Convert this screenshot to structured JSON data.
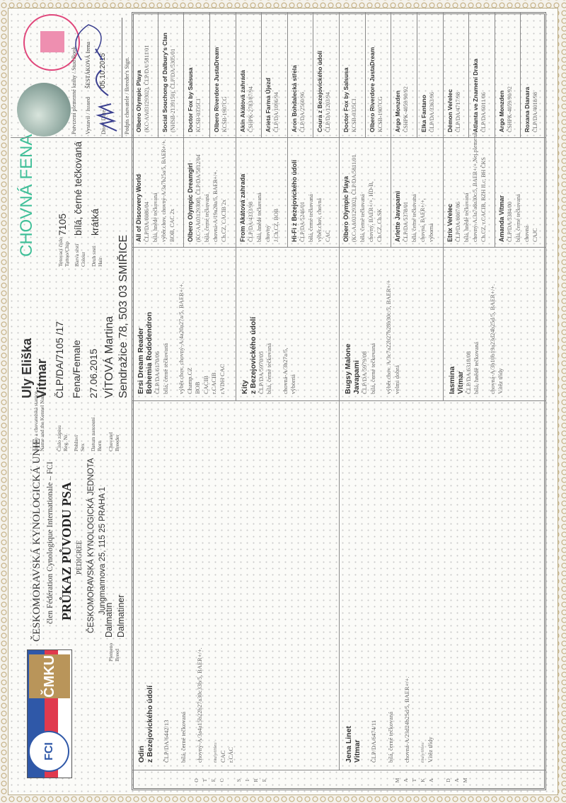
{
  "header": {
    "org_name": "ČESKOMORAVSKÁ KYNOLOGICKÁ UNIE",
    "fci_membership": "člen Fédération Cynologique Internationale – FCI",
    "doc_title": "PRŮKAZ PŮVODU PSA",
    "doc_subtitle": "PEDIGREE",
    "issuer": "ČESKOMORAVSKÁ KYNOLOGICKÁ JEDNOTA",
    "issuer_address": "Jungmannova 25, 115 25 PRAHA 1",
    "logo_text": [
      "FÉDÉRATION CYNOLOGIQUE INTERNATIONALE",
      "FCI",
      "ČMKU"
    ],
    "breed_label": [
      "Plemeno",
      "Breed"
    ],
    "breed_values": [
      "Dalmatin",
      "Dalmatiner"
    ],
    "field_labels": {
      "name": [
        "Jméno a chovatelská stanice",
        "Name and the Kennel Name"
      ],
      "reg": [
        "Číslo zápisu",
        "Reg. Nr."
      ],
      "sex": [
        "Pohlaví",
        "Sex"
      ],
      "born": [
        "Datum narození",
        "Born"
      ],
      "breeder": [
        "Chovatel",
        "Breeder"
      ],
      "tattoo": [
        "Tetovací číslo",
        "Tattoo/Chip"
      ],
      "colour": [
        "Barva srsti",
        "Colour"
      ],
      "hair": [
        "Druh srsti",
        "Hair"
      ]
    }
  },
  "dog": {
    "name": "Uly Eliška",
    "kennel": "Vitmar",
    "reg_nr": "ČLP/DA/7105 /17",
    "sex": "Fena/Female",
    "born": "27.06.2015",
    "breeder_name": "VÍTOVÁ Martina",
    "breeder_address": "Sendražice 78, 503 03 SMIŘICE",
    "tattoo": "7105",
    "colour": "bílá, černé tečkovaná",
    "hair": "krátká",
    "status": "CHOVNÁ FENA",
    "status_color": "#3fbf98"
  },
  "certification": {
    "stud_book_label": "Potvrzení plemenné knihy / Stud Book",
    "issued_label": "Vystavil / Issued",
    "issued_by": "ŠESTÁKOVÁ Irena",
    "date_label": "Dne / Date",
    "date": "05.10.2015",
    "breeder_sign_label": "Podpis chovatele / Breeder's Sign.",
    "stamp_text": "Plemenná kniha ČMKU 3",
    "stamp_color": "#e0457a"
  },
  "strip_labels": {
    "sire": [
      "O",
      "T",
      "E",
      "C",
      "S",
      "I",
      "R",
      "E"
    ],
    "dam": [
      "M",
      "A",
      "T",
      "K",
      "A",
      "D",
      "A",
      "M"
    ]
  },
  "pedigree": {
    "parents": [
      {
        "name_lines": [
          "Odin",
          "z Bezejovického údolí"
        ],
        "groups": [
          [
            "ČLP/DA/6442/13"
          ],
          [
            "bílá, černé tečkovaná"
          ],
          [
            "chovný-A/3a4a15b22b27a30c33b/5, BAER+/+."
          ]
        ],
        "titles_label": "tituly/titles/",
        "titles": [
          "CAC",
          "r.CAC"
        ]
      },
      {
        "name_lines": [
          "Jena Linet",
          "Vitmar"
        ],
        "groups": [
          [
            "ČLP/DA/6474/11"
          ],
          [
            "bílá, černé tečkovaná"
          ],
          [
            "chovná-A/23d24b25d/5, BAER+/+."
          ]
        ],
        "titles_label": "tituly/titles/",
        "titles": [
          "Vítěz třídy"
        ]
      }
    ],
    "grandparents": [
      {
        "name_lines": [
          "Ersi Dream Reader",
          "Bohemia Rododendron"
        ],
        "groups": [
          [
            "ČLP/DA/6170/06",
            "bílá, černé tečkovaná"
          ],
          [
            "výběr.chov, chovný-A/4a20a27a/5, BAER+/+.",
            "Champ.CZ",
            "BOB",
            "CACIB",
            "r.CACIB",
            "r.VDH CAC"
          ]
        ]
      },
      {
        "name_lines": [
          "Kity",
          "z Bezejovického údolí"
        ],
        "groups": [
          [
            "ČLP/DA/5970/05",
            "bílá, černé tečkovaná"
          ],
          [
            "chovná-A/3b27a/5,",
            "výborná"
          ]
        ]
      },
      {
        "name_lines": [
          "Bugsy Malone",
          "Javapami"
        ],
        "groups": [
          [
            "ČLP/DA/5979/08",
            "bílá, černé tečkovaná"
          ],
          [
            "výběr.chov. A/3c7a22b27b28b30c/5, BAER+/+",
            "velmi dobrá"
          ]
        ]
      },
      {
        "name_lines": [
          "Iasmina",
          "Vitmar"
        ],
        "groups": [
          [
            "ČLP/DA/6318/08",
            "bílá, hnědě tečkovaná"
          ],
          [
            "chovná-A/3b10b19a23d24b25d/5, BAER+/+.",
            "Vítěz třídy"
          ]
        ]
      }
    ],
    "great_grandparents": [
      {
        "name": "All of Discovery World",
        "lines": [
          "ČLP/DA/6086/04",
          "bílá, hnědé tečkovaná",
          "výběr.chov, chovný-A/3a7b25a/5, BAER+/+.",
          "BOB, CAC 2x"
        ]
      },
      {
        "name": "Olbero Olympic Dreamgirl",
        "lines": [
          "(KC-AA03129308), ČLP/DA/5812/04",
          "bílá, černé tečkovaná",
          "chovná-A/19a20a/5, BAER+/+.",
          "Ch.CZ, CACIB 2x"
        ]
      },
      {
        "name": "From Akátová zahrada",
        "lines": [
          "ČLP/DA/4333/98",
          "bílá, hnědé tečkovaná",
          "chovný",
          "J.Ch.CZ, BOB"
        ]
      },
      {
        "name": "Hi-Fi z Bezejovického údolí",
        "lines": [
          "ČLP/DA/5246/01",
          "bílá, černé tečkovaná",
          "výběr.chov, chovná",
          "CAC"
        ]
      },
      {
        "name": "Olbero Olympic Playa",
        "lines": [
          "(KC-AA03129302), ČLP/DA/5811/01",
          "bílá, černé tečkovaná",
          "chovný, BAER+/+, HD-B,",
          "Ch.CZ, Ch.SK"
        ]
      },
      {
        "name": "Arlette Javapami",
        "lines": [
          "ČLP/DA/5378/01",
          "bílá, černé tečkovaná",
          "chovná, BAER+/+,",
          "výborná"
        ]
      },
      {
        "name": "Etrix Veřelec",
        "lines": [
          "ČLP/DA/6067/06",
          "bílá, hnědé tečkovaná",
          "chovný-A/3a7a8a30c/5, BAER+/+,Nej.plemeník",
          "Ch.CZ, r.CACIB, BZH II.c, BH ČKS"
        ]
      },
      {
        "name": "Amanda Vitmar",
        "lines": [
          "ČLP/DA/5384/00",
          "bílá, černé tečkovaná",
          "chovná",
          "CAJC"
        ]
      }
    ],
    "great_great_grandparents": [
      {
        "name": "Olbero Olympic Playa",
        "reg": "(KC-AA03129302), ČLP/DA/5811/01"
      },
      {
        "name": "Social Souchong of Dalbury's Clan",
        "reg": "(NHSB-2139150), ČLP/DA/5305/01"
      },
      {
        "name": "Doctor Fox by Salsusa",
        "reg": "KCSB-0335CI"
      },
      {
        "name": "Olbero Riverdore JustaDream",
        "reg": "KCSB-1907CG"
      },
      {
        "name": "Akin Akátová zahrada",
        "reg": "ČSHPK-2783/87/94"
      },
      {
        "name": "Arieta Farma Újezd",
        "reg": "ČLP/DA/1096/94"
      },
      {
        "name": "Aron Bohdalecká střela",
        "reg": "ČLP/DA/2560/96"
      },
      {
        "name": "Coura z Bezejovického údolí",
        "reg": "ČLP/DA/1203/94"
      },
      {
        "name": "Doctor Fox by Salsusa",
        "reg": "KCSB-0335CI"
      },
      {
        "name": "Olbero Riverdore JustaDream",
        "reg": "KCSB-1907CG"
      },
      {
        "name": "Argo Monzden",
        "reg": "ČSHPK-4059/90/92"
      },
      {
        "name": "Elka Fantano",
        "reg": "ČLP/DA/3363/96"
      },
      {
        "name": "Démon Veřelec",
        "reg": "ČLP/DA/4717/98"
      },
      {
        "name": "Atlanta ve Znamení Draka",
        "reg": "ČLP/DA/6011/06"
      },
      {
        "name": "Argo Monzden",
        "reg": "ČSHPK-4059/90/92"
      },
      {
        "name": "Roxana Dianara",
        "reg": "ČLP/DA/4018/98"
      }
    ]
  }
}
